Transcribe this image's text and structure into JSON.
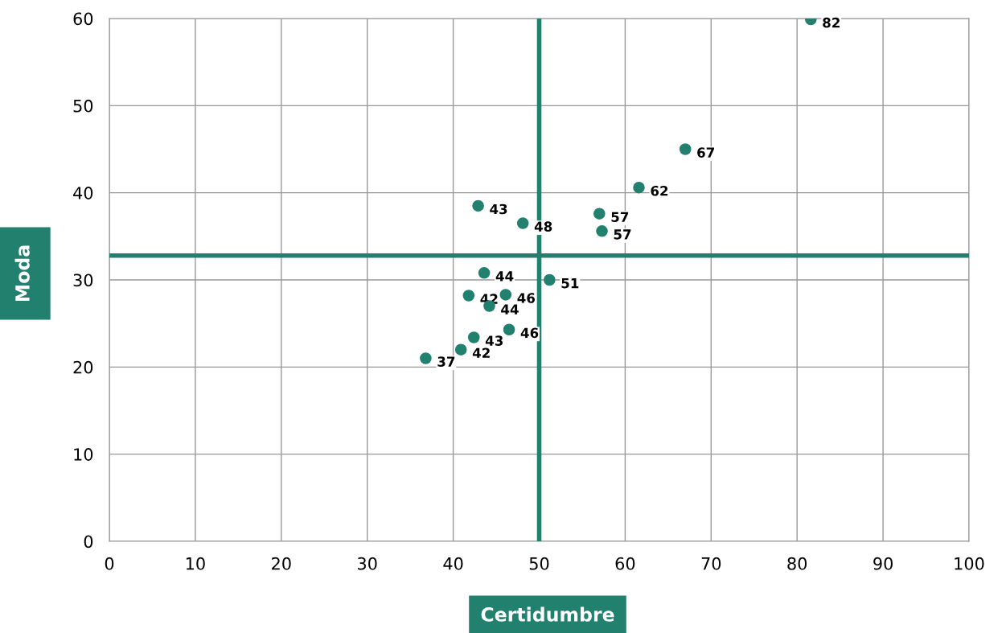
{
  "chart_data": {
    "type": "scatter",
    "xlabel": "Certidumbre",
    "ylabel": "Moda",
    "x": [
      81.6,
      67.0,
      61.6,
      42.9,
      57.0,
      48.1,
      57.3,
      43.6,
      51.2,
      41.8,
      46.1,
      44.2,
      46.5,
      42.4,
      40.9,
      36.8
    ],
    "values": [
      59.9,
      45.0,
      40.6,
      38.5,
      37.6,
      36.5,
      35.6,
      30.8,
      30.0,
      28.2,
      28.3,
      27.0,
      24.3,
      23.4,
      22.0,
      21.0
    ],
    "annotations": [
      {
        "text": "82",
        "x": 81.6,
        "y": 59.9
      },
      {
        "text": "67",
        "x": 67.0,
        "y": 45.0
      },
      {
        "text": "62",
        "x": 61.6,
        "y": 40.6
      },
      {
        "text": "43",
        "x": 42.9,
        "y": 38.5
      },
      {
        "text": "57",
        "x": 57.0,
        "y": 37.6
      },
      {
        "text": "48",
        "x": 48.1,
        "y": 36.5
      },
      {
        "text": "57",
        "x": 57.3,
        "y": 35.6
      },
      {
        "text": "44",
        "x": 43.6,
        "y": 30.8
      },
      {
        "text": "51",
        "x": 51.2,
        "y": 30.0
      },
      {
        "text": "42",
        "x": 41.8,
        "y": 28.2
      },
      {
        "text": "46",
        "x": 46.1,
        "y": 28.3
      },
      {
        "text": "44",
        "x": 44.2,
        "y": 27.0
      },
      {
        "text": "46",
        "x": 46.5,
        "y": 24.3
      },
      {
        "text": "43",
        "x": 42.4,
        "y": 23.4
      },
      {
        "text": "42",
        "x": 40.9,
        "y": 22.0
      },
      {
        "text": "37",
        "x": 36.8,
        "y": 21.0
      }
    ],
    "color": "#22806f",
    "marker": "circle",
    "xlim": [
      0,
      100
    ],
    "xticks": [
      0,
      10,
      20,
      30,
      40,
      50,
      60,
      70,
      80,
      90,
      100
    ],
    "ylim": [
      0,
      60
    ],
    "yticks": [
      0,
      10,
      20,
      30,
      40,
      50,
      60
    ],
    "grid": true,
    "ref_lines": [
      {
        "axis": "x",
        "value": 50,
        "color": "#22806f"
      },
      {
        "axis": "y",
        "value": 32.8,
        "color": "#22806f"
      }
    ]
  }
}
